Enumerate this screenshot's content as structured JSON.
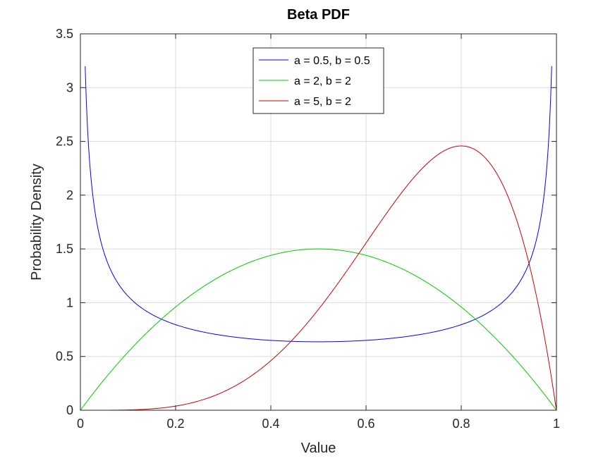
{
  "chart_data": {
    "type": "line",
    "title": "Beta PDF",
    "xlabel": "Value",
    "ylabel": "Probability Density",
    "xlim": [
      0,
      1
    ],
    "ylim": [
      0,
      3.5
    ],
    "x_ticks": [
      "0",
      "0.2",
      "0.4",
      "0.6",
      "0.8",
      "1"
    ],
    "y_ticks": [
      "0",
      "0.5",
      "1",
      "1.5",
      "2",
      "2.5",
      "3",
      "3.5"
    ],
    "grid": true,
    "legend_position": "top-center",
    "x_domain": [
      0.01,
      0.99
    ],
    "series": [
      {
        "name": "a = 0.5, b = 0.5",
        "a": 0.5,
        "b": 0.5,
        "color": "#0000ff"
      },
      {
        "name": "a = 2, b = 2",
        "a": 2,
        "b": 2,
        "color": "#00cc00"
      },
      {
        "name": "a = 5, b = 2",
        "a": 5,
        "b": 2,
        "color": "#cc0000"
      }
    ],
    "sample_points": {
      "a = 0.5, b = 0.5": [
        [
          0.01,
          3.2
        ],
        [
          0.1,
          1.06
        ],
        [
          0.2,
          0.8
        ],
        [
          0.3,
          0.69
        ],
        [
          0.5,
          0.64
        ],
        [
          0.7,
          0.69
        ],
        [
          0.8,
          0.8
        ],
        [
          0.9,
          1.06
        ],
        [
          0.99,
          3.2
        ]
      ],
      "a = 2, b = 2": [
        [
          0,
          0
        ],
        [
          0.1,
          0.54
        ],
        [
          0.2,
          0.96
        ],
        [
          0.3,
          1.26
        ],
        [
          0.5,
          1.5
        ],
        [
          0.7,
          1.26
        ],
        [
          0.8,
          0.96
        ],
        [
          0.9,
          0.54
        ],
        [
          1,
          0
        ]
      ],
      "a = 5, b = 2": [
        [
          0,
          0
        ],
        [
          0.2,
          0.05
        ],
        [
          0.4,
          0.46
        ],
        [
          0.5,
          0.94
        ],
        [
          0.6,
          1.56
        ],
        [
          0.7,
          2.16
        ],
        [
          0.8,
          2.46
        ],
        [
          0.9,
          1.97
        ],
        [
          1,
          0
        ]
      ]
    }
  }
}
